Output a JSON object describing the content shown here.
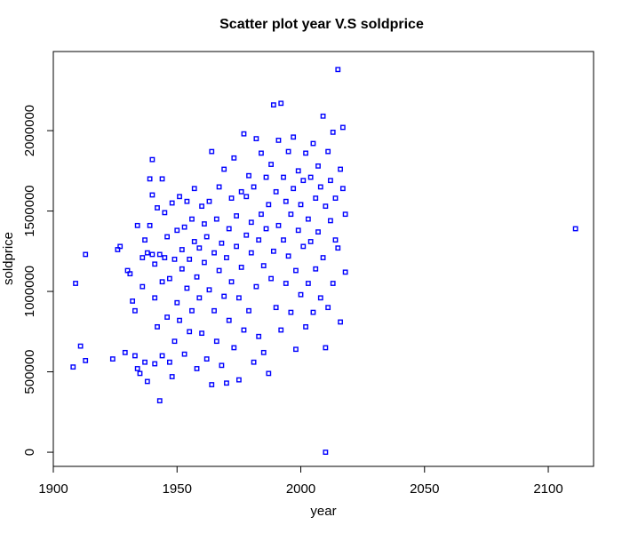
{
  "chart_data": {
    "type": "scatter",
    "title": "Scatter plot year V.S soldprice",
    "xlabel": "year",
    "ylabel": "soldprice",
    "color": "#0000ff",
    "xlim": [
      1900,
      2118.3
    ],
    "ylim": [
      -88000,
      2492000
    ],
    "xticks": [
      1900,
      1950,
      2000,
      2050,
      2100
    ],
    "yticks": [
      0,
      500000,
      1000000,
      1500000,
      2000000
    ],
    "x": [
      1908,
      1909,
      1911,
      1913,
      1913,
      1924,
      1926,
      1927,
      1929,
      1930,
      1931,
      1932,
      1933,
      1933,
      1934,
      1934,
      1935,
      1936,
      1936,
      1937,
      1937,
      1938,
      1938,
      1939,
      1939,
      1940,
      1940,
      1940,
      1941,
      1941,
      1941,
      1942,
      1942,
      1943,
      1943,
      1944,
      1944,
      1944,
      1945,
      1945,
      1946,
      1946,
      1947,
      1947,
      1948,
      1948,
      1949,
      1949,
      1950,
      1950,
      1951,
      1951,
      1952,
      1952,
      1953,
      1953,
      1954,
      1954,
      1955,
      1955,
      1956,
      1956,
      1957,
      1957,
      1958,
      1958,
      1959,
      1959,
      1960,
      1960,
      1961,
      1961,
      1962,
      1962,
      1963,
      1963,
      1964,
      1964,
      1965,
      1965,
      1966,
      1966,
      1967,
      1967,
      1968,
      1968,
      1969,
      1969,
      1970,
      1970,
      1971,
      1971,
      1972,
      1972,
      1973,
      1973,
      1974,
      1974,
      1975,
      1975,
      1976,
      1976,
      1977,
      1977,
      1978,
      1978,
      1979,
      1979,
      1980,
      1980,
      1981,
      1981,
      1982,
      1982,
      1983,
      1983,
      1984,
      1984,
      1985,
      1985,
      1986,
      1986,
      1987,
      1987,
      1988,
      1988,
      1989,
      1989,
      1990,
      1990,
      1991,
      1991,
      1992,
      1992,
      1993,
      1993,
      1994,
      1994,
      1995,
      1995,
      1996,
      1996,
      1997,
      1997,
      1998,
      1998,
      1999,
      1999,
      2000,
      2000,
      2001,
      2001,
      2002,
      2002,
      2003,
      2003,
      2004,
      2004,
      2005,
      2005,
      2006,
      2006,
      2007,
      2007,
      2008,
      2008,
      2009,
      2009,
      2010,
      2010,
      2010,
      2011,
      2011,
      2012,
      2012,
      2013,
      2013,
      2014,
      2014,
      2015,
      2015,
      2016,
      2016,
      2017,
      2017,
      2018,
      2018,
      2111
    ],
    "y": [
      530000,
      1050000,
      660000,
      570000,
      1230000,
      580000,
      1260000,
      1280000,
      620000,
      1130000,
      1110000,
      940000,
      600000,
      880000,
      520000,
      1410000,
      490000,
      1210000,
      1030000,
      560000,
      1320000,
      1240000,
      440000,
      1410000,
      1700000,
      1600000,
      1230000,
      1820000,
      550000,
      960000,
      1170000,
      780000,
      1520000,
      320000,
      1230000,
      1060000,
      1700000,
      600000,
      1490000,
      1210000,
      840000,
      1340000,
      560000,
      1080000,
      470000,
      1550000,
      1200000,
      690000,
      1380000,
      930000,
      1590000,
      820000,
      1140000,
      1260000,
      610000,
      1400000,
      1020000,
      1560000,
      750000,
      1200000,
      1450000,
      880000,
      1640000,
      1310000,
      520000,
      1090000,
      1270000,
      960000,
      1530000,
      740000,
      1180000,
      1420000,
      580000,
      1340000,
      1010000,
      1560000,
      1870000,
      420000,
      1240000,
      880000,
      1450000,
      690000,
      1650000,
      1130000,
      1300000,
      540000,
      1760000,
      970000,
      1210000,
      430000,
      1390000,
      820000,
      1580000,
      1060000,
      1830000,
      650000,
      1280000,
      1470000,
      450000,
      960000,
      1620000,
      1150000,
      1980000,
      760000,
      1350000,
      1590000,
      1720000,
      880000,
      1430000,
      1240000,
      560000,
      1650000,
      1950000,
      1030000,
      1320000,
      720000,
      1860000,
      1480000,
      1160000,
      620000,
      1710000,
      1390000,
      490000,
      1540000,
      1080000,
      1790000,
      2160000,
      1250000,
      900000,
      1620000,
      1410000,
      1940000,
      2170000,
      760000,
      1320000,
      1710000,
      1050000,
      1560000,
      1870000,
      1220000,
      870000,
      1480000,
      1640000,
      1960000,
      1130000,
      640000,
      1750000,
      1380000,
      1540000,
      980000,
      1280000,
      1690000,
      780000,
      1860000,
      1450000,
      1050000,
      1710000,
      1310000,
      1920000,
      870000,
      1580000,
      1140000,
      1370000,
      1780000,
      960000,
      1650000,
      2090000,
      1210000,
      0,
      650000,
      1530000,
      1870000,
      900000,
      1440000,
      1690000,
      1050000,
      1990000,
      1320000,
      1580000,
      2380000,
      1270000,
      810000,
      1760000,
      2020000,
      1640000,
      1120000,
      1480000,
      1390000
    ]
  }
}
